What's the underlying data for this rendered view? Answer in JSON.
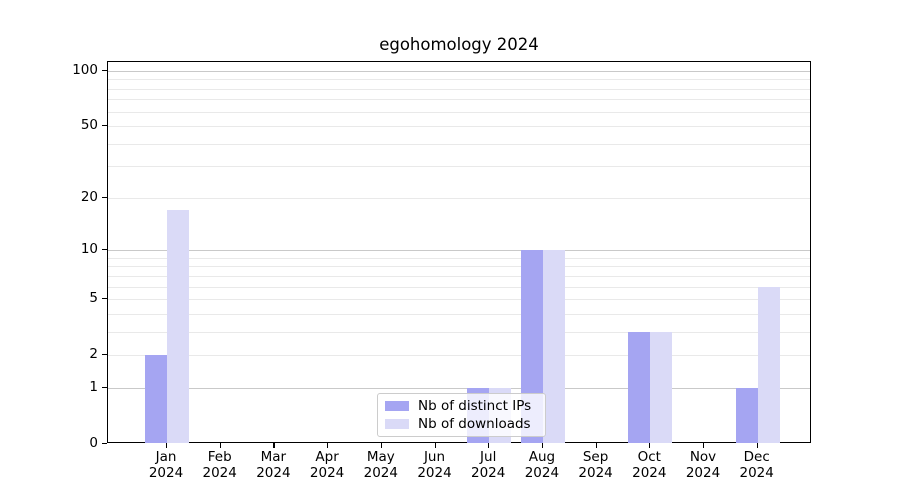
{
  "title": "egohomology 2024",
  "colors": {
    "bar_distinct_ips": "#a5a5f2",
    "bar_downloads": "#dadaf7",
    "grid_minor": "#e9e9e9",
    "grid_major": "#c9c9c9",
    "axis": "#000000",
    "legend_border": "#cccccc"
  },
  "legend": {
    "items": [
      {
        "label": "Nb of distinct IPs",
        "color": "#a5a5f2"
      },
      {
        "label": "Nb of downloads",
        "color": "#dadaf7"
      }
    ]
  },
  "chart_data": {
    "type": "bar",
    "title": "egohomology 2024",
    "categories": [
      "Jan 2024",
      "Feb 2024",
      "Mar 2024",
      "Apr 2024",
      "May 2024",
      "Jun 2024",
      "Jul 2024",
      "Aug 2024",
      "Sep 2024",
      "Oct 2024",
      "Nov 2024",
      "Dec 2024"
    ],
    "series": [
      {
        "name": "Nb of distinct IPs",
        "color": "#a5a5f2",
        "values": [
          2,
          0,
          0,
          0,
          0,
          0,
          1,
          10,
          0,
          3,
          0,
          1
        ]
      },
      {
        "name": "Nb of downloads",
        "color": "#dadaf7",
        "values": [
          17,
          0,
          0,
          0,
          0,
          0,
          1,
          10,
          0,
          3,
          0,
          6
        ]
      }
    ],
    "xlabel": "",
    "ylabel": "",
    "yscale": "log(value+1)",
    "y_ticks": [
      0,
      1,
      2,
      5,
      10,
      20,
      50,
      100
    ],
    "y_minor_gridlines": [
      2,
      3,
      4,
      5,
      6,
      7,
      8,
      9,
      20,
      30,
      40,
      50,
      60,
      70,
      80,
      90
    ],
    "y_major_gridlines": [
      1,
      10,
      100
    ],
    "ylim": [
      0,
      110
    ],
    "grid": "horizontal",
    "legend_position": "inside lower-center"
  }
}
